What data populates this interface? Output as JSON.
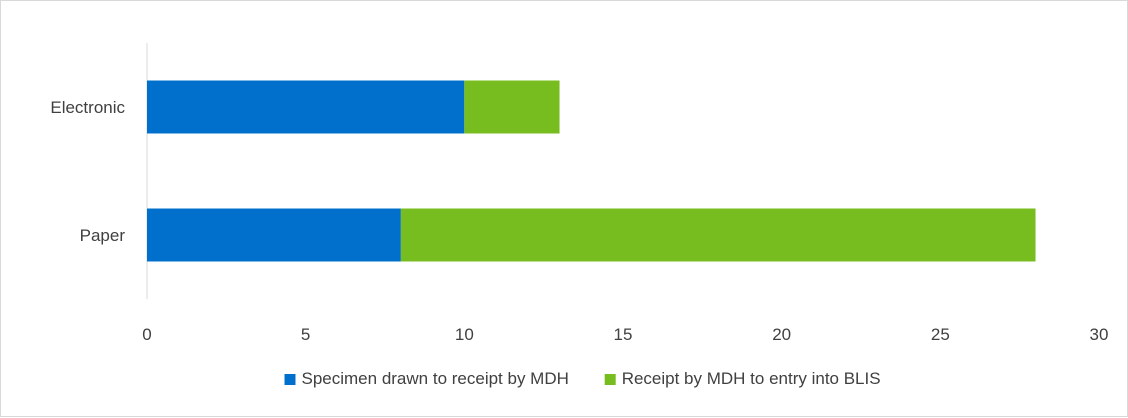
{
  "chart_data": {
    "type": "bar",
    "orientation": "horizontal",
    "stacked": true,
    "categories": [
      "Electronic",
      "Paper"
    ],
    "series": [
      {
        "name": "Specimen drawn to receipt by MDH",
        "values": [
          10,
          8
        ],
        "color": "#0070cc"
      },
      {
        "name": "Receipt by MDH to entry into BLIS",
        "values": [
          3,
          20
        ],
        "color": "#78bd1f"
      }
    ],
    "xlim": [
      0,
      30
    ],
    "xticks": [
      "0",
      "5",
      "10",
      "15",
      "20",
      "25",
      "30"
    ],
    "title": "",
    "xlabel": "",
    "ylabel": "",
    "grid": false,
    "legend_position": "bottom"
  }
}
